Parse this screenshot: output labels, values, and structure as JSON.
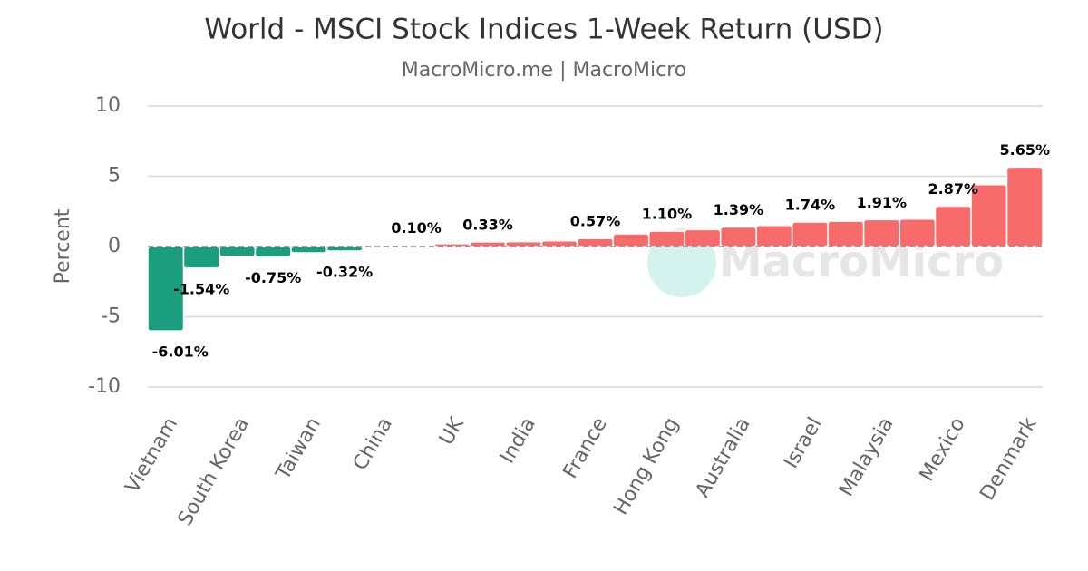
{
  "chart_data": {
    "type": "bar",
    "title": "World - MSCI Stock Indices 1-Week Return (USD)",
    "subtitle": "MacroMicro.me | MacroMicro",
    "y_label": "Percent",
    "watermark": "MacroMicro",
    "categories": [
      "Vietnam",
      null,
      "South Korea",
      null,
      "Taiwan",
      null,
      "China",
      null,
      "UK",
      null,
      "India",
      null,
      "France",
      null,
      "Hong Kong",
      null,
      "Australia",
      null,
      "Israel",
      null,
      "Malaysia",
      null,
      "Mexico",
      null,
      "Denmark"
    ],
    "values": [
      -6.01,
      -1.54,
      -0.7,
      -0.75,
      -0.45,
      -0.32,
      0.02,
      0.1,
      0.2,
      0.33,
      0.35,
      0.4,
      0.57,
      0.9,
      1.1,
      1.2,
      1.39,
      1.5,
      1.74,
      1.8,
      1.91,
      1.95,
      2.87,
      4.4,
      5.65
    ],
    "value_labels": [
      "-6.01%",
      "-1.54%",
      null,
      "-0.75%",
      null,
      "-0.32%",
      null,
      "0.10%",
      null,
      "0.33%",
      null,
      null,
      "0.57%",
      null,
      "1.10%",
      null,
      "1.39%",
      null,
      "1.74%",
      null,
      "1.91%",
      null,
      "2.87%",
      null,
      "5.65%"
    ],
    "positive_color": "#f86b6b",
    "negative_color": "#1a9e7e",
    "ylim": [
      -10,
      10
    ],
    "yticks": [
      -10,
      -5,
      0,
      5,
      10
    ],
    "grid": true
  }
}
